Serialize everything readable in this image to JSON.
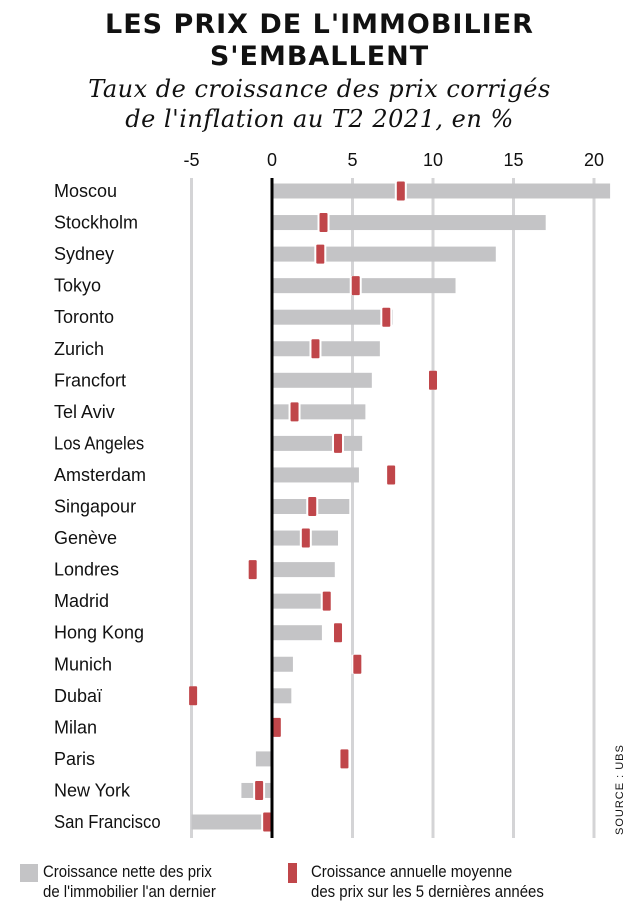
{
  "title_line1": "LES PRIX DE L'IMMOBILIER",
  "title_line2": "S'EMBALLENT",
  "subtitle_line1": "Taux de croissance des prix corrigés",
  "subtitle_line2": "de l'inflation au T2 2021, en %",
  "source": "SOURCE : UBS",
  "legend": {
    "net_line1": "Croissance nette des prix",
    "net_line2": "de l'immobilier l'an dernier",
    "avg_line1": "Croissance annuelle moyenne",
    "avg_line2": "des prix sur les 5 dernières années"
  },
  "colors": {
    "bar": "#c4c4c6",
    "marker": "#c0464a",
    "grid": "#d4d4d6",
    "zero_axis": "#000000"
  },
  "chart_data": {
    "type": "bar",
    "orientation": "horizontal",
    "xlim": [
      -5,
      21
    ],
    "xticks": [
      -5,
      0,
      5,
      10,
      15,
      20
    ],
    "grid": true,
    "categories": [
      "Moscou",
      "Stockholm",
      "Sydney",
      "Tokyo",
      "Toronto",
      "Zurich",
      "Francfort",
      "Tel Aviv",
      "Los Angeles",
      "Amsterdam",
      "Singapour",
      "Genève",
      "Londres",
      "Madrid",
      "Hong Kong",
      "Munich",
      "Dubaï",
      "Milan",
      "Paris",
      "New York",
      "San Francisco"
    ],
    "series": [
      {
        "name": "Croissance nette des prix de l'immobilier l'an dernier",
        "kind": "bar",
        "values": [
          21.0,
          17.0,
          13.9,
          11.4,
          7.5,
          6.7,
          6.2,
          5.8,
          5.6,
          5.4,
          4.8,
          4.1,
          3.9,
          3.4,
          3.1,
          1.3,
          1.2,
          0.3,
          -1.0,
          -1.9,
          -5.0
        ]
      },
      {
        "name": "Croissance annuelle moyenne des prix sur les 5 dernières années",
        "kind": "marker",
        "values": [
          8.0,
          3.2,
          3.0,
          5.2,
          7.1,
          2.7,
          10.0,
          1.4,
          4.1,
          7.4,
          2.5,
          2.1,
          -1.2,
          3.4,
          4.1,
          5.3,
          -4.9,
          0.3,
          4.5,
          -0.8,
          -0.3
        ]
      }
    ]
  }
}
